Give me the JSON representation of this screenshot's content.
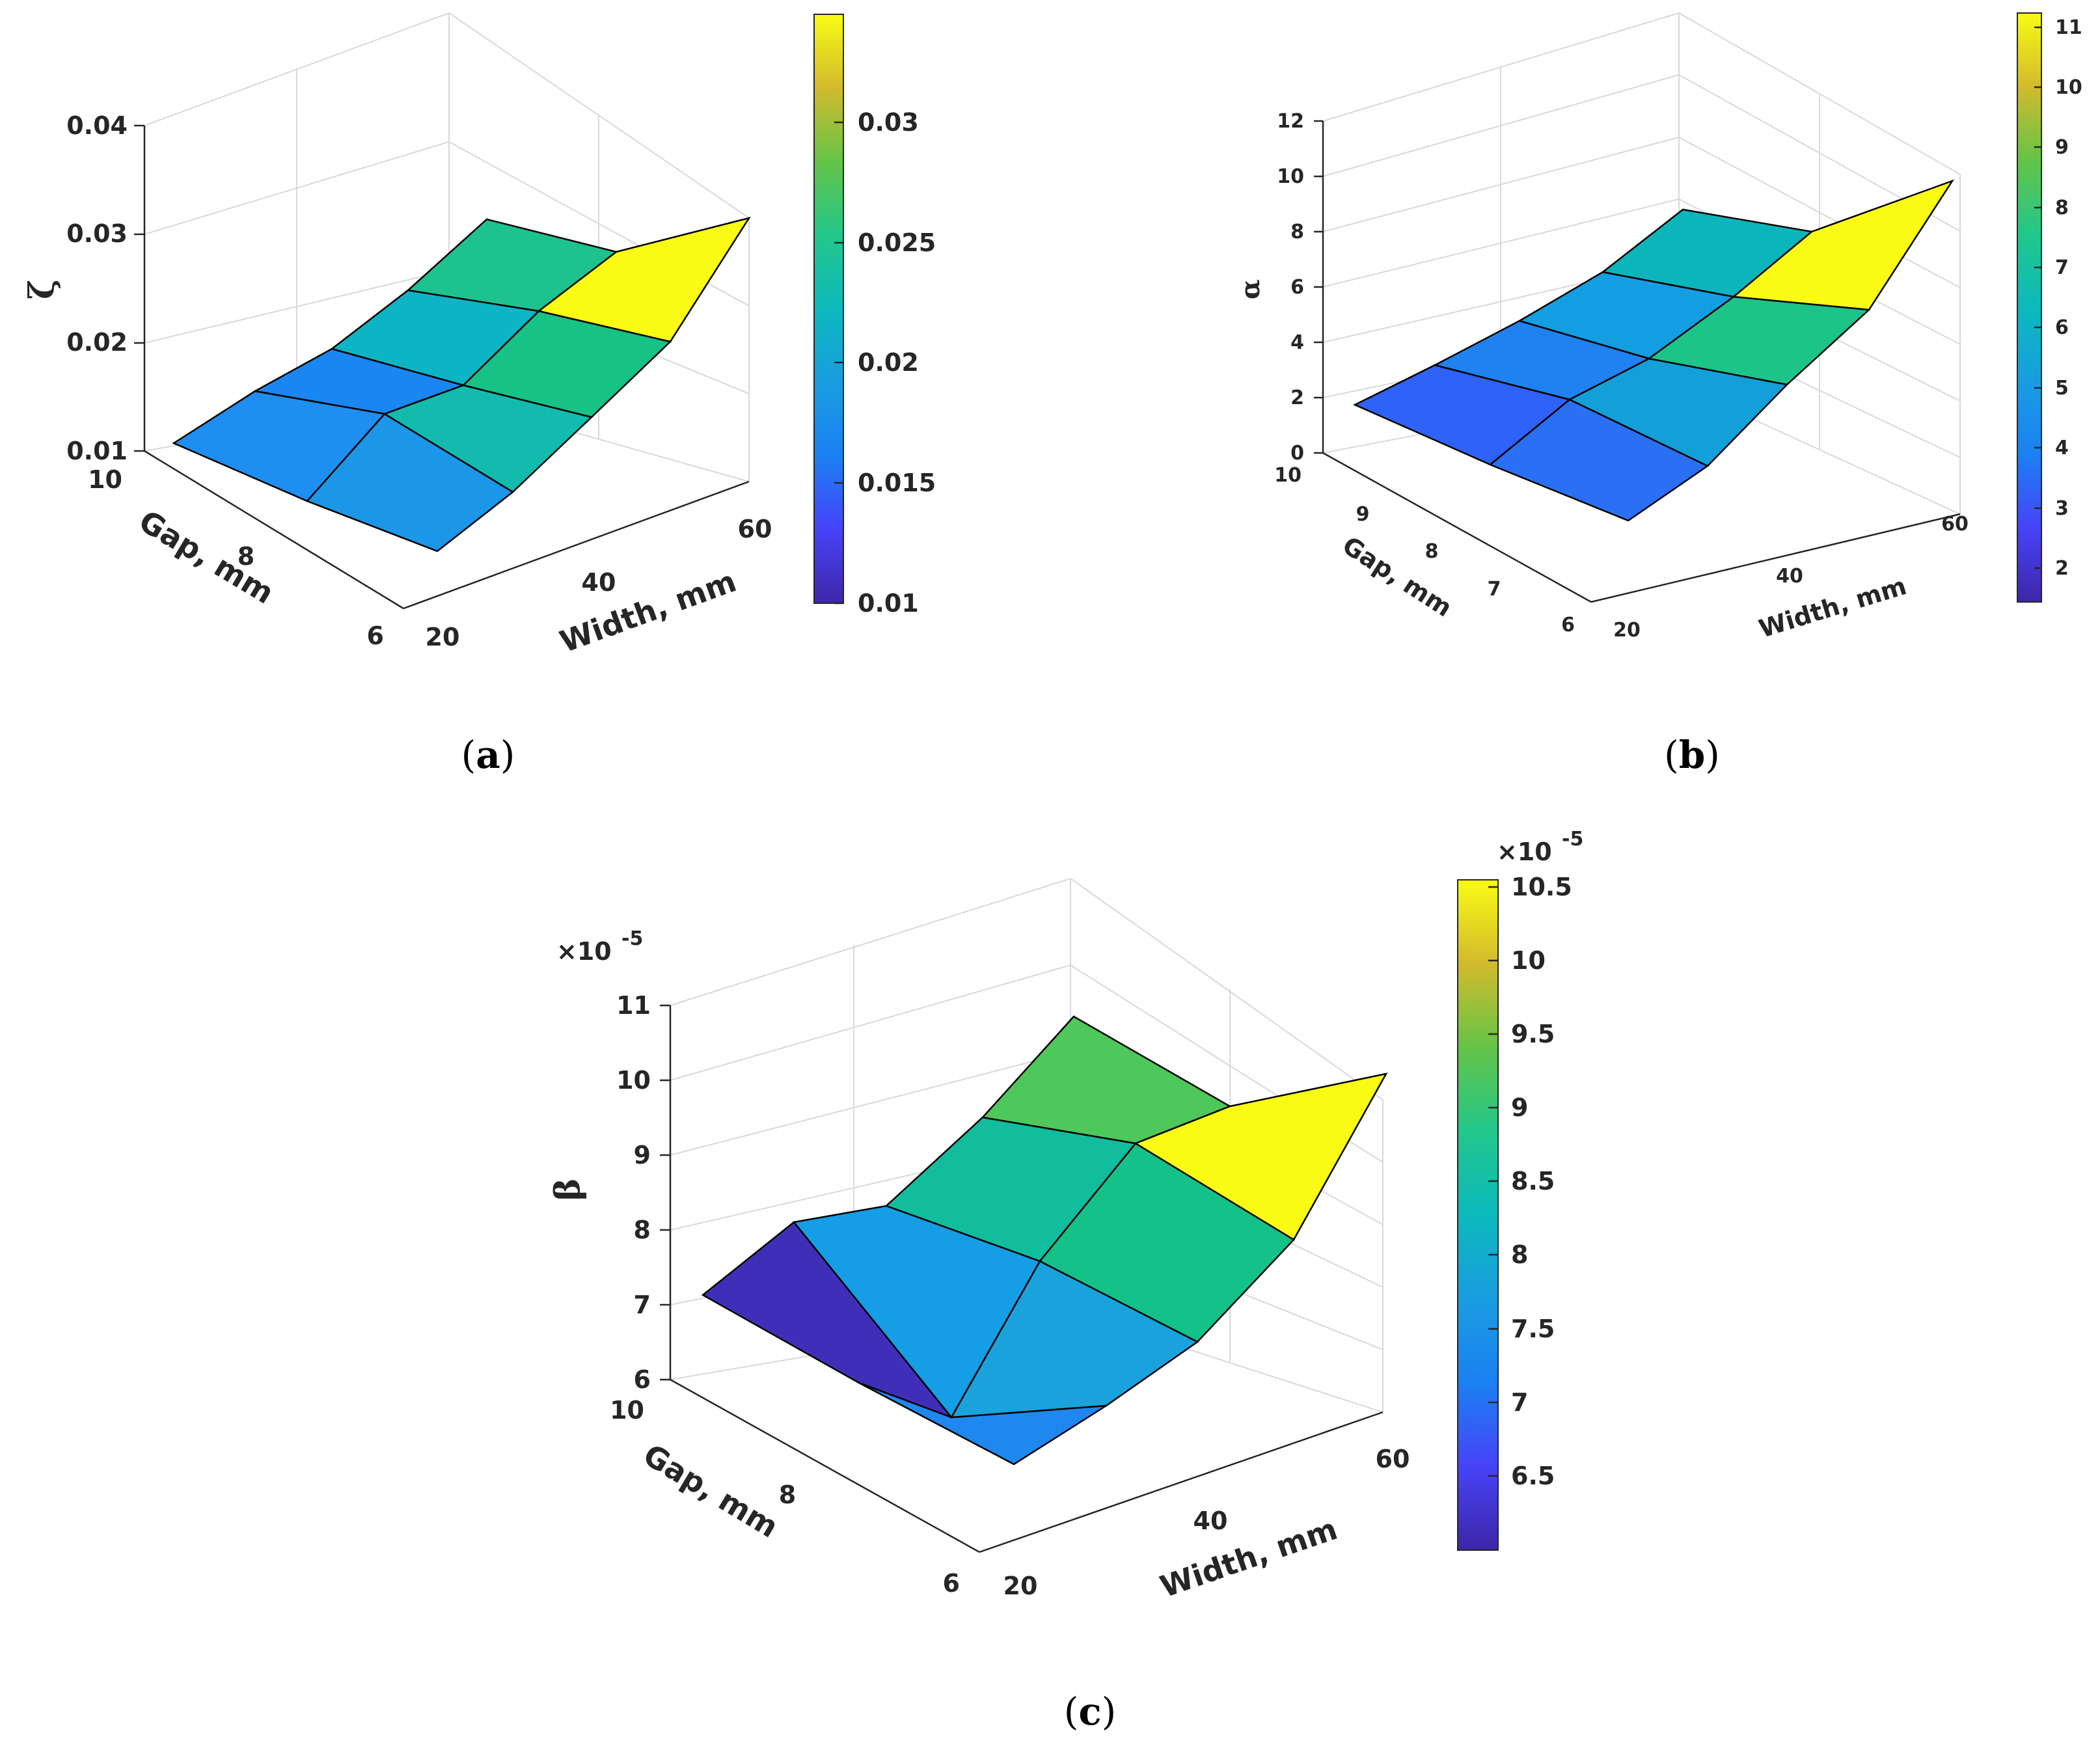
{
  "panels": [
    {
      "open": "(",
      "letter": "a",
      "close": ")"
    },
    {
      "open": "(",
      "letter": "b",
      "close": ")"
    },
    {
      "open": "(",
      "letter": "c",
      "close": ")"
    }
  ],
  "chart_data": [
    {
      "type": "surface",
      "panel": "a",
      "xlabel": "Width, mm",
      "ylabel": "Gap, mm",
      "zlabel": "ζ",
      "x": [
        20,
        40,
        60
      ],
      "y": [
        6,
        8,
        10
      ],
      "x_ticks": [
        "20",
        "40",
        "60"
      ],
      "y_ticks": [
        "6",
        "8",
        "10"
      ],
      "zlim": [
        0.01,
        0.04
      ],
      "z_ticks": [
        "0.01",
        "0.02",
        "0.03",
        "0.04"
      ],
      "z": [
        [
          0.0163,
          0.0209,
          0.028
        ],
        [
          0.0185,
          0.0246,
          0.03
        ],
        [
          0.0194,
          0.0267,
          0.0345
        ]
      ],
      "face_values": [
        [
          0.018,
          0.0225
        ],
        [
          0.019,
          0.024
        ]
      ],
      "colorbar": {
        "min": 0.01,
        "max": 0.0345,
        "ticks": [
          "0.01",
          "0.015",
          "0.02",
          "0.025",
          "0.03"
        ],
        "tick_values": [
          0.01,
          0.015,
          0.02,
          0.025,
          0.03
        ]
      },
      "grid": true
    },
    {
      "type": "surface",
      "panel": "b",
      "xlabel": "Width, mm",
      "ylabel": "Gap, mm",
      "zlabel": "α",
      "x": [
        20,
        40,
        60
      ],
      "y": [
        6,
        8,
        10
      ],
      "x_ticks": [
        "20",
        "40",
        "60"
      ],
      "y_ticks": [
        "6",
        "7",
        "8",
        "9",
        "10"
      ],
      "zlim": [
        0,
        12
      ],
      "z_ticks": [
        "0",
        "2",
        "4",
        "6",
        "8",
        "10",
        "12"
      ],
      "z": [
        [
          2.0,
          4.6,
          7.0
        ],
        [
          2.5,
          5.5,
          8.5
        ],
        [
          4.0,
          7.5,
          11.3
        ]
      ],
      "face_values": [
        [
          3.5,
          5.5
        ],
        [
          4.5,
          6.5
        ]
      ],
      "colorbar": {
        "min": 1.5,
        "max": 11.3,
        "ticks": [
          "2",
          "3",
          "4",
          "5",
          "6",
          "7",
          "8",
          "9",
          "10",
          "11"
        ],
        "tick_values": [
          2,
          3,
          4,
          5,
          6,
          7,
          8,
          9,
          10,
          11
        ]
      },
      "grid": true
    },
    {
      "type": "surface",
      "panel": "c",
      "xlabel": "Width, mm",
      "ylabel": "Gap, mm",
      "zlabel": "β",
      "z_multiplier": "×10",
      "z_exponent": "-5",
      "x": [
        20,
        40,
        60
      ],
      "y": [
        6,
        8,
        10
      ],
      "x_ticks": [
        "20",
        "40",
        "60"
      ],
      "y_ticks": [
        "6",
        "8",
        "10"
      ],
      "zlim": [
        6,
        11
      ],
      "z_ticks": [
        "6",
        "7",
        "8",
        "9",
        "10",
        "11"
      ],
      "z": [
        [
          6.7,
          8.0,
          8.6
        ],
        [
          6.3,
          8.3,
          9.6
        ],
        [
          8.5,
          9.9,
          10.6
        ]
      ],
      "face_values": [
        [
          6.2,
          7.8
        ],
        [
          8.0,
          9.0
        ]
      ],
      "colorbar": {
        "min": 6.1,
        "max": 10.65,
        "ticks": [
          "6.5",
          "7",
          "7.5",
          "8",
          "8.5",
          "9",
          "9.5",
          "10",
          "10.5"
        ],
        "tick_values": [
          6.5,
          7,
          7.5,
          8,
          8.5,
          9,
          9.5,
          10,
          10.5
        ],
        "multiplier": "×10",
        "exponent": "-5"
      },
      "grid": true
    }
  ]
}
